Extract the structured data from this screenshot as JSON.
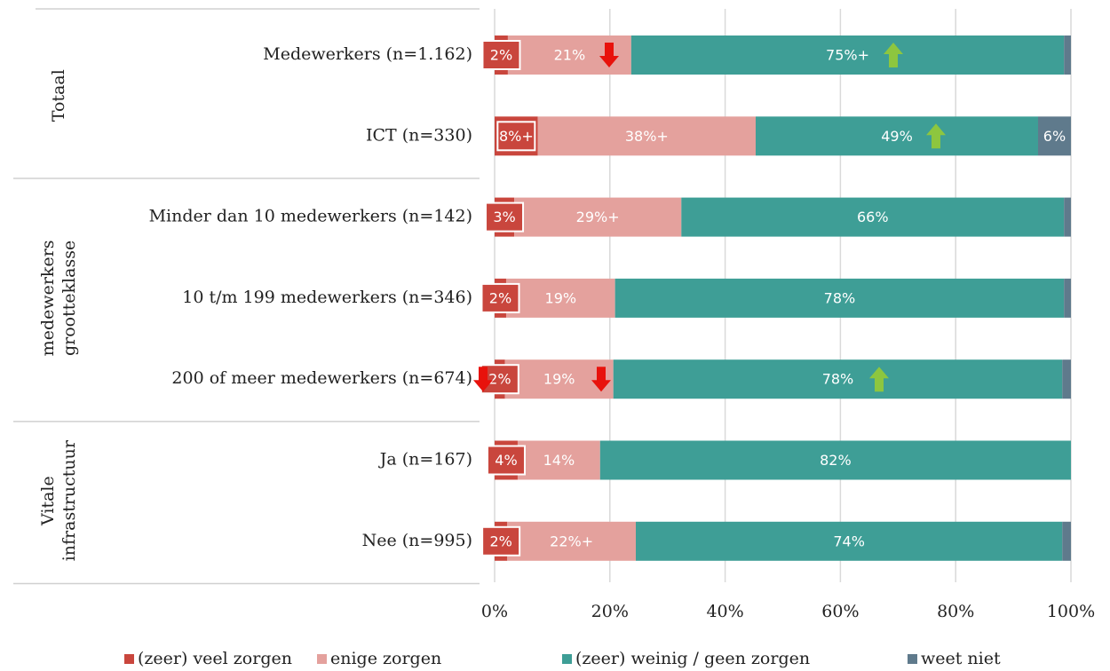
{
  "chart_data": {
    "type": "bar",
    "orientation": "horizontal",
    "stacked": true,
    "groups": [
      {
        "label": [
          "Totaal"
        ],
        "categories": [
          "Medewerkers (n=1.162)",
          "ICT (n=330)"
        ]
      },
      {
        "label": [
          "medewerkers",
          "grootteklasse"
        ],
        "categories": [
          "Minder dan 10 medewerkers (n=142)",
          "10 t/m 199 medewerkers (n=346)",
          "200 of meer medewerkers (n=674)"
        ]
      },
      {
        "label": [
          "Vitale",
          "infrastructuur"
        ],
        "categories": [
          "Ja (n=167)",
          "Nee (n=995)"
        ]
      }
    ],
    "series": [
      {
        "name": "(zeer) veel zorgen",
        "color": "#c9463d",
        "values": [
          2.3,
          7.5,
          3.4,
          2.0,
          1.8,
          4.0,
          2.2
        ],
        "value_labels": [
          "2%",
          "8%+",
          "3%",
          "2%",
          "2%",
          "4%",
          "2%"
        ]
      },
      {
        "name": "enige zorgen",
        "color": "#e4a19d",
        "values": [
          21.4,
          37.8,
          29.0,
          18.9,
          18.8,
          14.3,
          22.3
        ],
        "value_labels": [
          "21%",
          "38%+",
          "29%+",
          "19%",
          "19%",
          "14%",
          "22%+"
        ]
      },
      {
        "name": "(zeer) weinig / geen zorgen",
        "color": "#3e9e96",
        "values": [
          75.1,
          49.0,
          66.4,
          77.9,
          77.9,
          81.7,
          74.0
        ],
        "value_labels": [
          "75%+",
          "49%",
          "66%",
          "78%",
          "78%",
          "82%",
          "74%"
        ]
      },
      {
        "name": "weet niet",
        "color": "#5f7a8c",
        "values": [
          1.2,
          5.7,
          1.2,
          1.2,
          1.5,
          0,
          1.5
        ],
        "value_labels": [
          null,
          "6%",
          null,
          null,
          null,
          null,
          null
        ]
      }
    ],
    "xlim": [
      0,
      100
    ],
    "xticks": [
      {
        "value": 0,
        "label": "0%"
      },
      {
        "value": 20,
        "label": "20%"
      },
      {
        "value": 40,
        "label": "40%"
      },
      {
        "value": 60,
        "label": "60%"
      },
      {
        "value": 80,
        "label": "80%"
      },
      {
        "value": 100,
        "label": "100%"
      }
    ],
    "grid": true,
    "legend": "bottom"
  }
}
